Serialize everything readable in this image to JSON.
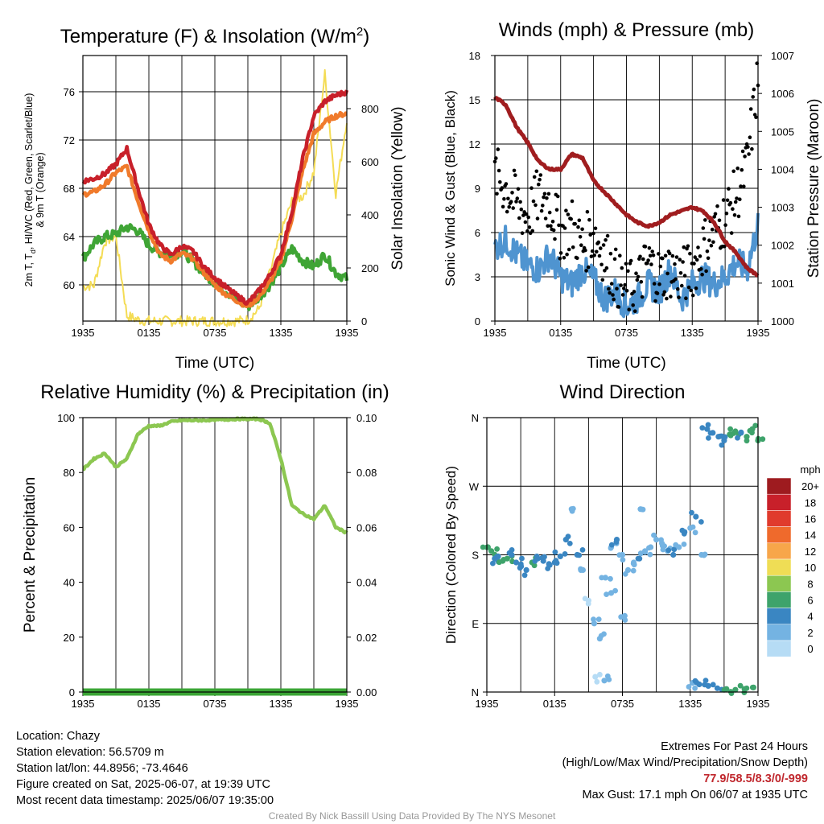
{
  "chart_data": [
    {
      "type": "line",
      "title": "Temperature (F) & Insolation (W/m²)",
      "xlabel": "Time (UTC)",
      "ylabel": "2m T, Td, HI/WC (Red, Green, Scarlet/Blue) & 9m T (Orange)",
      "ylabel_line1": "2m T, T",
      "ylabel_sub": "d",
      "ylabel_line1b": ", HI/WC (Red, Green, Scarlet/Blue)",
      "ylabel_line2": "& 9m T (Orange)",
      "ylabel_right": "Solar Insolation (Yellow)",
      "x_ticks": [
        "1935",
        "0135",
        "0735",
        "1335",
        "1935"
      ],
      "ylim": [
        57,
        79
      ],
      "y_ticks": [
        60,
        64,
        68,
        72,
        76
      ],
      "y2lim": [
        0,
        1000
      ],
      "y2_ticks": [
        0,
        200,
        400,
        600,
        800
      ],
      "grid": true,
      "x_hours": [
        0,
        1,
        2,
        3,
        4,
        5,
        6,
        7,
        8,
        9,
        10,
        11,
        12,
        13,
        14,
        15,
        16,
        17,
        18,
        19,
        20,
        21,
        22,
        23,
        24
      ],
      "series": [
        {
          "name": "2m T",
          "color": "#c8202a",
          "axis": "left",
          "values": [
            68.6,
            68.8,
            69.2,
            70.0,
            71.3,
            68.0,
            65.0,
            63.3,
            62.5,
            63.2,
            62.8,
            61.5,
            60.6,
            59.8,
            59.1,
            58.5,
            59.5,
            60.8,
            62.5,
            66.0,
            70.5,
            74.0,
            75.2,
            75.7,
            76.0
          ]
        },
        {
          "name": "9m T",
          "color": "#f07a2b",
          "axis": "left",
          "values": [
            67.5,
            67.7,
            68.3,
            69.3,
            69.8,
            67.0,
            64.5,
            62.5,
            62.0,
            62.6,
            62.2,
            61.0,
            60.0,
            59.2,
            58.7,
            58.2,
            59.0,
            60.2,
            62.0,
            65.5,
            69.5,
            72.5,
            73.5,
            74.0,
            74.2
          ]
        },
        {
          "name": "2m Td",
          "color": "#3fa535",
          "axis": "left",
          "values": [
            62.2,
            63.4,
            64.0,
            64.2,
            64.8,
            64.5,
            63.3,
            62.7,
            62.4,
            62.8,
            62.0,
            61.0,
            60.2,
            59.5,
            58.8,
            58.2,
            59.0,
            60.0,
            61.5,
            63.0,
            62.0,
            61.5,
            62.5,
            61.0,
            60.5
          ]
        },
        {
          "name": "Solar Insolation",
          "color": "#f4dc55",
          "axis": "right",
          "values": [
            130,
            135,
            300,
            320,
            20,
            5,
            0,
            0,
            0,
            0,
            0,
            0,
            0,
            0,
            0,
            5,
            45,
            180,
            330,
            450,
            470,
            560,
            930,
            480,
            760
          ]
        }
      ]
    },
    {
      "type": "line",
      "title": "Winds (mph) & Pressure (mb)",
      "xlabel": "Time (UTC)",
      "ylabel": "Sonic Wind & Gust (Blue, Black)",
      "ylabel_right": "Station Pressure (Maroon)",
      "x_ticks": [
        "1935",
        "0135",
        "0735",
        "1335",
        "1935"
      ],
      "ylim": [
        0,
        18
      ],
      "y_ticks": [
        0,
        3,
        6,
        9,
        12,
        15,
        18
      ],
      "y2lim": [
        1000,
        1007
      ],
      "y2_ticks": [
        1000,
        1001,
        1002,
        1003,
        1004,
        1005,
        1006,
        1007
      ],
      "grid": true,
      "x_hours": [
        0,
        1,
        2,
        3,
        4,
        5,
        6,
        7,
        8,
        9,
        10,
        11,
        12,
        13,
        14,
        15,
        16,
        17,
        18,
        19,
        20,
        21,
        22,
        23,
        24
      ],
      "series": [
        {
          "name": "Sonic Wind",
          "color": "#4f94d0",
          "axis": "left",
          "values": [
            5.0,
            5.5,
            4.5,
            3.8,
            3.5,
            4.5,
            3.0,
            2.5,
            3.5,
            2.8,
            1.5,
            2.0,
            1.0,
            1.5,
            2.5,
            2.0,
            3.5,
            1.5,
            2.5,
            3.0,
            2.5,
            3.0,
            4.0,
            3.5,
            6.5
          ]
        },
        {
          "name": "Gust",
          "color": "#000000",
          "axis": "left",
          "style": "points",
          "values": [
            10.0,
            9.0,
            8.0,
            7.0,
            8.5,
            8.0,
            6.0,
            6.5,
            5.0,
            6.0,
            4.5,
            3.0,
            2.0,
            2.5,
            4.0,
            3.0,
            3.5,
            3.0,
            3.5,
            5.0,
            6.0,
            7.0,
            8.5,
            10.5,
            16.5
          ]
        },
        {
          "name": "Station Pressure",
          "color": "#a01d1f",
          "axis": "right",
          "values": [
            1005.9,
            1005.7,
            1005.1,
            1004.7,
            1004.2,
            1004.0,
            1004.0,
            1004.4,
            1004.3,
            1003.7,
            1003.4,
            1003.1,
            1002.8,
            1002.6,
            1002.5,
            1002.6,
            1002.8,
            1002.9,
            1003.0,
            1002.9,
            1002.6,
            1002.1,
            1001.8,
            1001.4,
            1001.2
          ]
        }
      ]
    },
    {
      "type": "line",
      "title": "Relative Humidity (%) & Precipitation (in)",
      "ylabel": "Percent & Precipitation",
      "x_ticks": [
        "1935",
        "0135",
        "0735",
        "1335",
        "1935"
      ],
      "ylim": [
        0,
        100
      ],
      "y_ticks": [
        0,
        20,
        40,
        60,
        80,
        100
      ],
      "y2lim": [
        0,
        0.1
      ],
      "y2_ticks": [
        "0.00",
        "0.02",
        "0.04",
        "0.06",
        "0.08",
        "0.10"
      ],
      "grid": true,
      "x_hours": [
        0,
        1,
        2,
        3,
        4,
        5,
        6,
        7,
        8,
        9,
        10,
        11,
        12,
        13,
        14,
        15,
        16,
        17,
        18,
        19,
        20,
        21,
        22,
        23,
        24
      ],
      "series": [
        {
          "name": "Relative Humidity",
          "color": "#8cc751",
          "axis": "left",
          "values": [
            81,
            85,
            87,
            82,
            85,
            94,
            97,
            97,
            98.5,
            99,
            99,
            99,
            99.2,
            99.3,
            99.5,
            99.5,
            99.5,
            98,
            85,
            68,
            65,
            63,
            68,
            60,
            58
          ]
        },
        {
          "name": "Precipitation",
          "color": "#3aa535",
          "axis": "right",
          "values": [
            0,
            0,
            0,
            0,
            0,
            0,
            0,
            0,
            0,
            0,
            0,
            0,
            0,
            0,
            0,
            0,
            0,
            0,
            0,
            0,
            0,
            0,
            0,
            0,
            0
          ]
        }
      ]
    },
    {
      "type": "scatter",
      "title": "Wind Direction",
      "ylabel": "Direction (Colored By Speed)",
      "x_ticks": [
        "1935",
        "0135",
        "0735",
        "1335",
        "1935"
      ],
      "y_ticks": [
        "N",
        "E",
        "S",
        "W",
        "N"
      ],
      "ylim": [
        0,
        360
      ],
      "grid": true,
      "legend": {
        "title": "mph",
        "labels": [
          "20+",
          "18",
          "16",
          "14",
          "12",
          "10",
          "8",
          "6",
          "4",
          "2",
          "0"
        ],
        "colors": [
          "#9e1b1f",
          "#c8202a",
          "#e03b2d",
          "#ef6a2c",
          "#f7a64a",
          "#efdd55",
          "#8cc751",
          "#3ea36b",
          "#3a86c2",
          "#74b3e2",
          "#b6dcf5"
        ],
        "placement": "right"
      },
      "series": [
        {
          "name": "Wind Direction",
          "x": [
            0.1,
            0.4,
            0.7,
            1.0,
            1.4,
            1.8,
            2.2,
            2.6,
            3.0,
            3.5,
            4.0,
            4.5,
            5.0,
            5.5,
            6.0,
            6.5,
            7.0,
            7.5,
            8.0,
            8.5,
            9.0,
            9.5,
            10.0,
            10.5,
            11.0,
            11.5,
            12.0,
            12.5,
            13.0,
            13.5,
            14.0,
            14.5,
            15.0,
            15.5,
            16.0,
            16.5,
            17.0,
            17.5,
            18.0,
            18.5,
            19.0,
            19.5,
            20.0,
            20.5,
            21.0,
            21.5,
            22.0,
            22.5,
            23.0,
            23.5,
            24.0,
            18.2,
            18.8,
            19.6,
            20.4,
            21.2,
            22.0,
            22.8,
            23.6,
            9.6,
            10.4,
            12.2,
            13.6,
            11.0
          ],
          "y": [
            190,
            185,
            175,
            178,
            172,
            175,
            180,
            170,
            165,
            160,
            170,
            175,
            172,
            168,
            170,
            178,
            200,
            240,
            180,
            160,
            120,
            90,
            70,
            150,
            190,
            200,
            180,
            160,
            170,
            175,
            185,
            190,
            200,
            195,
            185,
            180,
            190,
            210,
            215,
            230,
            180,
            345,
            340,
            335,
            330,
            338,
            342,
            340,
            335,
            345,
            330,
            12,
            10,
            8,
            5,
            4,
            3,
            4,
            6,
            20,
            15,
            100,
            240,
            130
          ],
          "speed": [
            5,
            6,
            3,
            4,
            6,
            5,
            3,
            4,
            3,
            4,
            5,
            4,
            3,
            4,
            3,
            4,
            3,
            2,
            3,
            1,
            0,
            1,
            2,
            1,
            2,
            3,
            2,
            1,
            2,
            3,
            2,
            2,
            1,
            2,
            1,
            3,
            2,
            3,
            2,
            3,
            2,
            4,
            4,
            3,
            4,
            6,
            6,
            4,
            5,
            6,
            6,
            1,
            4,
            3,
            4,
            5,
            6,
            5,
            6,
            0,
            1,
            2,
            2,
            1
          ]
        }
      ]
    }
  ],
  "info": {
    "location": "Location: Chazy",
    "elevation": "Station elevation: 56.5709 m",
    "latlon": "Station lat/lon: 44.8956; -73.4646",
    "created": "Figure created on Sat, 2025-06-07, at 19:39 UTC",
    "recent": "Most recent data timestamp: 2025/06/07 19:35:00"
  },
  "extremes": {
    "title": "Extremes For Past 24 Hours",
    "subtitle": "(High/Low/Max Wind/Precipitation/Snow Depth)",
    "values": "77.9/58.5/8.3/0/-999",
    "gust": "Max Gust: 17.1 mph On 06/07 at 1935 UTC",
    "values_color": "#c0272d"
  },
  "credit": "Created By Nick Bassill Using Data Provided By The NYS Mesonet"
}
